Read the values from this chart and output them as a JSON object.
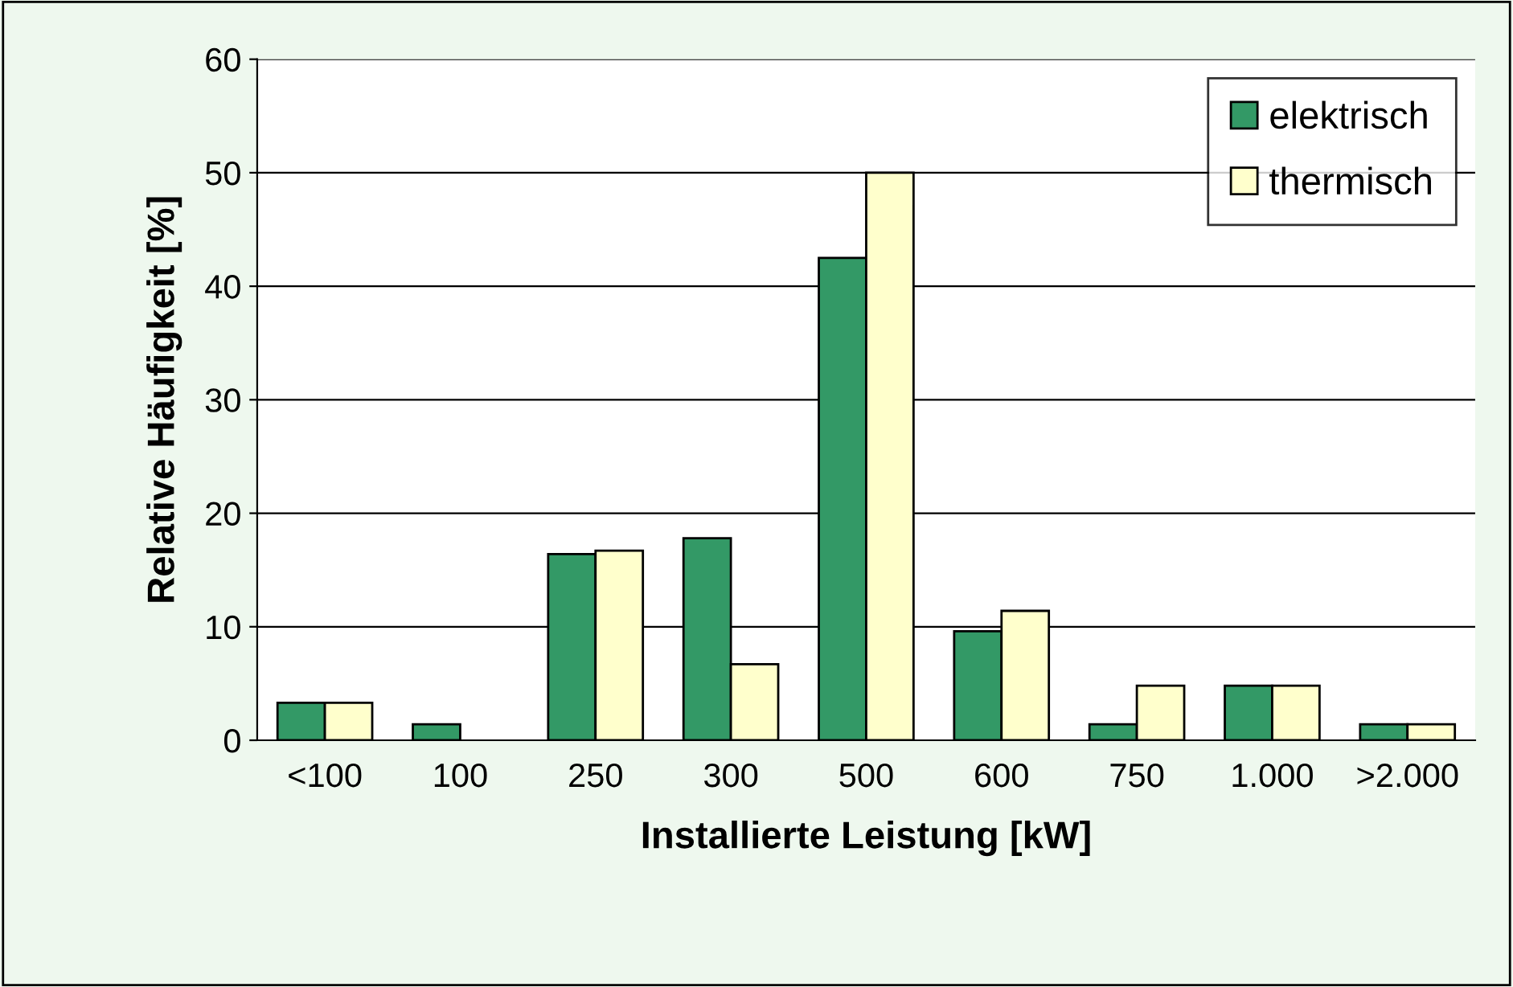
{
  "chart_data": {
    "type": "bar",
    "xlabel": "Installierte Leistung [kW]",
    "ylabel": "Relative Häufigkeit [%]",
    "categories": [
      "<100",
      "100",
      "250",
      "300",
      "500",
      "600",
      "750",
      "1.000",
      ">2.000"
    ],
    "series": [
      {
        "name": "elektrisch",
        "color": "#339966",
        "values": [
          3.3,
          1.4,
          16.4,
          17.8,
          42.5,
          9.6,
          1.4,
          4.8,
          1.4
        ]
      },
      {
        "name": "thermisch",
        "color": "#ffffcc",
        "values": [
          3.3,
          null,
          16.7,
          6.7,
          50,
          11.4,
          4.8,
          4.8,
          1.4
        ]
      }
    ],
    "ylim": [
      0,
      60
    ],
    "yticks": [
      0,
      10,
      20,
      30,
      40,
      50,
      60
    ],
    "grid": "y",
    "legend": "top right"
  }
}
